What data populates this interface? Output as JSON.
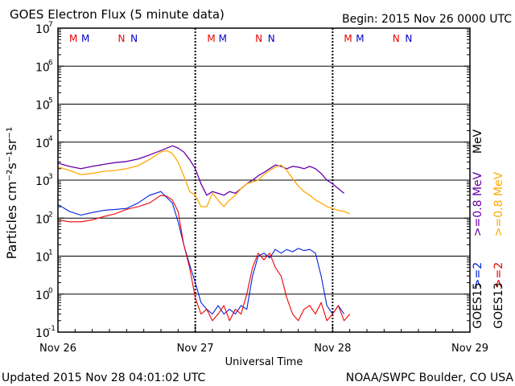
{
  "chart_data": {
    "type": "line",
    "title": "GOES Electron Flux (5 minute data)",
    "begin_label": "Begin: 2015 Nov 26 0000 UTC",
    "xlabel": "Universal Time",
    "ylabel": "Particles cm⁻²s⁻¹sr⁻¹",
    "x_unit": "hours since 2015 Nov 26 0000 UTC",
    "xlim": [
      0,
      72
    ],
    "ylim_log10": [
      -1,
      7
    ],
    "x_ticks": [
      {
        "x": 0,
        "label": "Nov 26"
      },
      {
        "x": 24,
        "label": "Nov 27"
      },
      {
        "x": 48,
        "label": "Nov 28"
      },
      {
        "x": 72,
        "label": "Nov 29"
      }
    ],
    "y_ticks": [
      {
        "exp": -1,
        "base": "10",
        "sup": "-1"
      },
      {
        "exp": 0,
        "base": "10",
        "sup": "0"
      },
      {
        "exp": 1,
        "base": "10",
        "sup": "1"
      },
      {
        "exp": 2,
        "base": "10",
        "sup": "2"
      },
      {
        "exp": 3,
        "base": "10",
        "sup": "3"
      },
      {
        "exp": 4,
        "base": "10",
        "sup": "4"
      },
      {
        "exp": 5,
        "base": "10",
        "sup": "5"
      },
      {
        "exp": 6,
        "base": "10",
        "sup": "6"
      },
      {
        "exp": 7,
        "base": "10",
        "sup": "7"
      }
    ],
    "day_boundaries": [
      24,
      48
    ],
    "threshold": {
      "value": 1000,
      "style": "dashed"
    },
    "markers": [
      {
        "x": 2.7,
        "label": "M",
        "color": "#ee0000"
      },
      {
        "x": 4.8,
        "label": "M",
        "color": "#0000cc"
      },
      {
        "x": 11.1,
        "label": "N",
        "color": "#ee0000"
      },
      {
        "x": 13.3,
        "label": "N",
        "color": "#0000cc"
      },
      {
        "x": 26.8,
        "label": "M",
        "color": "#ee0000"
      },
      {
        "x": 28.8,
        "label": "M",
        "color": "#0000cc"
      },
      {
        "x": 35.1,
        "label": "N",
        "color": "#ee0000"
      },
      {
        "x": 37.3,
        "label": "N",
        "color": "#0000cc"
      },
      {
        "x": 50.7,
        "label": "M",
        "color": "#ee0000"
      },
      {
        "x": 52.8,
        "label": "M",
        "color": "#0000cc"
      },
      {
        "x": 59.1,
        "label": "N",
        "color": "#ee0000"
      },
      {
        "x": 61.3,
        "label": "N",
        "color": "#0000cc"
      }
    ],
    "series": [
      {
        "name": "GOES15 >=0.8 MeV",
        "color": "#6600aa",
        "width": 1.3,
        "x": [
          0,
          2,
          4,
          6,
          8,
          10,
          12,
          14,
          16,
          18,
          20,
          21,
          22,
          23,
          24,
          25,
          26,
          27,
          28,
          29,
          30,
          31,
          32,
          33,
          34,
          35,
          36,
          37,
          38,
          39,
          40,
          41,
          42,
          43,
          44,
          45,
          46,
          47,
          48,
          49,
          50
        ],
        "y": [
          2800,
          2300,
          2000,
          2300,
          2600,
          2900,
          3100,
          3600,
          4600,
          6000,
          8000,
          7000,
          5500,
          3500,
          2000,
          800,
          400,
          500,
          450,
          400,
          500,
          450,
          600,
          800,
          1000,
          1300,
          1600,
          2000,
          2500,
          2300,
          2000,
          2300,
          2200,
          2000,
          2300,
          2000,
          1500,
          1000,
          800,
          600,
          450
        ]
      },
      {
        "name": "GOES13 >=0.8 MeV",
        "color": "#ffaa00",
        "width": 1.3,
        "x": [
          0,
          2,
          4,
          6,
          8,
          10,
          12,
          14,
          16,
          18,
          19,
          20,
          21,
          22,
          23,
          24,
          25,
          26,
          27,
          28,
          29,
          30,
          31,
          32,
          33,
          34,
          35,
          36,
          37,
          38,
          39,
          40,
          41,
          42,
          43,
          44,
          45,
          46,
          47,
          48,
          49,
          50,
          51
        ],
        "y": [
          2200,
          1800,
          1400,
          1500,
          1700,
          1800,
          2000,
          2400,
          3500,
          5500,
          6000,
          5000,
          3000,
          1300,
          500,
          400,
          200,
          200,
          450,
          300,
          200,
          300,
          400,
          600,
          800,
          900,
          1000,
          1400,
          1800,
          2200,
          2500,
          1800,
          1100,
          700,
          500,
          400,
          300,
          250,
          200,
          180,
          160,
          150,
          130
        ]
      },
      {
        "name": "GOES15 >=2 MeV",
        "color": "#0022dd",
        "width": 1.1,
        "x": [
          0,
          2,
          4,
          6,
          8,
          10,
          12,
          14,
          16,
          18,
          19,
          20,
          21,
          22,
          23,
          24,
          25,
          26,
          27,
          28,
          29,
          30,
          31,
          32,
          33,
          34,
          35,
          36,
          37,
          38,
          39,
          40,
          41,
          42,
          43,
          44,
          45,
          46,
          47,
          48,
          49,
          50
        ],
        "y": [
          230,
          150,
          120,
          140,
          160,
          170,
          180,
          250,
          400,
          500,
          350,
          250,
          80,
          20,
          6,
          2,
          0.6,
          0.4,
          0.3,
          0.5,
          0.3,
          0.4,
          0.3,
          0.5,
          0.4,
          3,
          10,
          12,
          9,
          15,
          12,
          15,
          13,
          16,
          14,
          15,
          12,
          3,
          0.5,
          0.3,
          0.5,
          0.3
        ]
      },
      {
        "name": "GOES13 >=2 MeV",
        "color": "#ee0000",
        "width": 1.1,
        "x": [
          0,
          2,
          4,
          6,
          8,
          10,
          12,
          14,
          16,
          18,
          19,
          20,
          21,
          22,
          23,
          24,
          25,
          26,
          27,
          28,
          29,
          30,
          31,
          32,
          33,
          34,
          35,
          36,
          37,
          38,
          39,
          40,
          41,
          42,
          43,
          44,
          45,
          46,
          47,
          48,
          49,
          50,
          51
        ],
        "y": [
          90,
          80,
          80,
          90,
          110,
          130,
          170,
          200,
          250,
          400,
          380,
          300,
          150,
          20,
          5,
          0.8,
          0.3,
          0.4,
          0.2,
          0.3,
          0.5,
          0.2,
          0.4,
          0.3,
          1,
          5,
          12,
          8,
          12,
          5,
          3,
          0.8,
          0.3,
          0.2,
          0.4,
          0.5,
          0.3,
          0.6,
          0.2,
          0.3,
          0.5,
          0.2,
          0.3
        ]
      }
    ],
    "legend": [
      {
        "label": ">=0.8 MeV",
        "prefix": "GOES15",
        "color": "#6600aa"
      },
      {
        "label": ">=0.8 MeV",
        "prefix": "GOES13",
        "color": "#ffaa00"
      },
      {
        "label": ">=2",
        "prefix": "GOES15",
        "color": "#0022dd"
      },
      {
        "label": ">=2",
        "prefix": "GOES13",
        "color": "#ee0000"
      }
    ],
    "legend_extra": {
      "mev_label": "MeV",
      "goes15": "GOES15",
      "goes13": "GOES13"
    }
  },
  "footer": {
    "updated": "Updated 2015 Nov 28 04:01:02 UTC",
    "source": "NOAA/SWPC Boulder, CO USA"
  }
}
